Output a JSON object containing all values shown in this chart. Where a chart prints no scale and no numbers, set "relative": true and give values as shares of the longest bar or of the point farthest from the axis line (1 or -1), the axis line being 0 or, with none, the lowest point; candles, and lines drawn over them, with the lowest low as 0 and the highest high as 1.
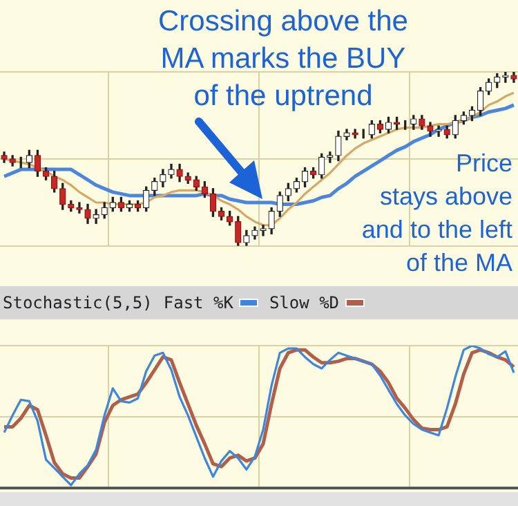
{
  "chart_data": [
    {
      "type": "candlestick",
      "relative": true,
      "grid": true,
      "categories": [
        null,
        null,
        null,
        null,
        null,
        null,
        null,
        null,
        null,
        null,
        null,
        null,
        null,
        null,
        null,
        null,
        null,
        null,
        null,
        null,
        null,
        null,
        null,
        null,
        null,
        null,
        null,
        null,
        null,
        null,
        null,
        null,
        null,
        null,
        null,
        null,
        null,
        null,
        null,
        null,
        null,
        null,
        null,
        null,
        null,
        null,
        null,
        null,
        null,
        null,
        null,
        null,
        null,
        null,
        null,
        null,
        null,
        null,
        null,
        null,
        null,
        null
      ],
      "ohlc": [
        [
          0.52,
          0.54,
          0.48,
          0.5
        ],
        [
          0.5,
          0.52,
          0.46,
          0.48
        ],
        [
          0.48,
          0.51,
          0.45,
          0.48
        ],
        [
          0.48,
          0.55,
          0.45,
          0.52
        ],
        [
          0.52,
          0.55,
          0.4,
          0.43
        ],
        [
          0.43,
          0.45,
          0.38,
          0.4
        ],
        [
          0.4,
          0.43,
          0.31,
          0.33
        ],
        [
          0.33,
          0.36,
          0.21,
          0.24
        ],
        [
          0.24,
          0.26,
          0.2,
          0.22
        ],
        [
          0.22,
          0.25,
          0.19,
          0.21
        ],
        [
          0.21,
          0.24,
          0.13,
          0.16
        ],
        [
          0.16,
          0.21,
          0.13,
          0.18
        ],
        [
          0.18,
          0.25,
          0.16,
          0.22
        ],
        [
          0.22,
          0.28,
          0.2,
          0.25
        ],
        [
          0.25,
          0.28,
          0.2,
          0.22
        ],
        [
          0.22,
          0.26,
          0.2,
          0.24
        ],
        [
          0.24,
          0.26,
          0.2,
          0.22
        ],
        [
          0.22,
          0.34,
          0.2,
          0.32
        ],
        [
          0.32,
          0.39,
          0.29,
          0.37
        ],
        [
          0.37,
          0.44,
          0.34,
          0.41
        ],
        [
          0.41,
          0.47,
          0.39,
          0.44
        ],
        [
          0.44,
          0.47,
          0.37,
          0.4
        ],
        [
          0.4,
          0.42,
          0.36,
          0.38
        ],
        [
          0.38,
          0.4,
          0.32,
          0.34
        ],
        [
          0.34,
          0.37,
          0.28,
          0.3
        ],
        [
          0.3,
          0.33,
          0.17,
          0.2
        ],
        [
          0.2,
          0.22,
          0.15,
          0.17
        ],
        [
          0.17,
          0.2,
          0.12,
          0.14
        ],
        [
          0.14,
          0.17,
          0,
          0.02
        ],
        [
          0.02,
          0.09,
          0,
          0.06
        ],
        [
          0.06,
          0.11,
          0.04,
          0.09
        ],
        [
          0.09,
          0.12,
          0.06,
          0.1
        ],
        [
          0.1,
          0.22,
          0.07,
          0.2
        ],
        [
          0.2,
          0.31,
          0.17,
          0.29
        ],
        [
          0.29,
          0.36,
          0.26,
          0.33
        ],
        [
          0.33,
          0.39,
          0.31,
          0.37
        ],
        [
          0.37,
          0.45,
          0.34,
          0.43
        ],
        [
          0.43,
          0.45,
          0.39,
          0.41
        ],
        [
          0.41,
          0.53,
          0.39,
          0.51
        ],
        [
          0.51,
          0.54,
          0.48,
          0.52
        ],
        [
          0.52,
          0.66,
          0.49,
          0.63
        ],
        [
          0.63,
          0.67,
          0.61,
          0.65
        ],
        [
          0.65,
          0.67,
          0.62,
          0.64
        ],
        [
          0.64,
          0.67,
          0.62,
          0.64
        ],
        [
          0.64,
          0.72,
          0.62,
          0.7
        ],
        [
          0.7,
          0.72,
          0.65,
          0.67
        ],
        [
          0.67,
          0.74,
          0.65,
          0.71
        ],
        [
          0.71,
          0.74,
          0.67,
          0.7
        ],
        [
          0.7,
          0.72,
          0.67,
          0.7
        ],
        [
          0.7,
          0.75,
          0.67,
          0.73
        ],
        [
          0.73,
          0.75,
          0.67,
          0.69
        ],
        [
          0.69,
          0.71,
          0.63,
          0.66
        ],
        [
          0.66,
          0.69,
          0.63,
          0.67
        ],
        [
          0.67,
          0.69,
          0.62,
          0.64
        ],
        [
          0.64,
          0.75,
          0.62,
          0.72
        ],
        [
          0.72,
          0.77,
          0.7,
          0.75
        ],
        [
          0.75,
          0.8,
          0.72,
          0.78
        ],
        [
          0.78,
          0.91,
          0.75,
          0.89
        ],
        [
          0.89,
          0.96,
          0.87,
          0.94
        ],
        [
          0.94,
          0.99,
          0.91,
          0.97
        ],
        [
          0.97,
          1,
          0.94,
          0.98
        ],
        [
          0.98,
          1,
          0.94,
          0.96
        ]
      ],
      "series": [
        {
          "type": "line",
          "color": "#d6a868",
          "values": [
            0.5,
            0.49,
            0.48,
            0.47,
            0.45,
            0.43,
            0.4,
            0.38,
            0.35,
            0.31,
            0.28,
            0.25,
            0.25,
            0.24,
            0.24,
            0.24,
            0.24,
            0.25,
            0.28,
            0.29,
            0.31,
            0.32,
            0.32,
            0.32,
            0.31,
            0.29,
            0.26,
            0.24,
            0.21,
            0.17,
            0.14,
            0.12,
            0.12,
            0.16,
            0.21,
            0.25,
            0.3,
            0.34,
            0.38,
            0.42,
            0.47,
            0.52,
            0.56,
            0.59,
            0.61,
            0.63,
            0.65,
            0.67,
            0.68,
            0.68,
            0.68,
            0.69,
            0.7,
            0.7,
            0.71,
            0.72,
            0.74,
            0.77,
            0.81,
            0.83,
            0.86,
            0.88
          ]
        },
        {
          "type": "line",
          "color": "#4a86e0",
          "values": [
            0.4,
            0.42,
            0.44,
            0.44,
            0.44,
            0.44,
            0.44,
            0.44,
            0.44,
            0.41,
            0.38,
            0.35,
            0.33,
            0.31,
            0.3,
            0.29,
            0.29,
            0.29,
            0.29,
            0.29,
            0.29,
            0.29,
            0.29,
            0.29,
            0.3,
            0.29,
            0.29,
            0.27,
            0.26,
            0.25,
            0.25,
            0.25,
            0.25,
            0.24,
            0.24,
            0.24,
            0.25,
            0.26,
            0.28,
            0.29,
            0.33,
            0.36,
            0.4,
            0.43,
            0.46,
            0.49,
            0.52,
            0.55,
            0.57,
            0.6,
            0.62,
            0.64,
            0.67,
            0.69,
            0.71,
            0.72,
            0.74,
            0.75,
            0.77,
            0.78,
            0.79,
            0.81
          ]
        }
      ],
      "annotations": [
        "Crossing above the\nMA marks the BUY\nof the uptrend",
        "Price\nstays above\nand to the left\nof the MA"
      ]
    },
    {
      "type": "line",
      "title": "Stochastic(5,5)",
      "relative": true,
      "grid": true,
      "legend": "top left",
      "categories": [
        null,
        null,
        null,
        null,
        null,
        null,
        null,
        null,
        null,
        null,
        null,
        null,
        null,
        null,
        null,
        null,
        null,
        null,
        null,
        null,
        null,
        null,
        null,
        null,
        null,
        null,
        null,
        null,
        null,
        null,
        null,
        null,
        null,
        null,
        null,
        null,
        null,
        null,
        null,
        null,
        null,
        null,
        null,
        null,
        null,
        null,
        null,
        null,
        null,
        null,
        null,
        null,
        null,
        null,
        null,
        null,
        null,
        null,
        null,
        null,
        null,
        null
      ],
      "series": [
        {
          "name": "Fast %K",
          "color": "#3d86e0",
          "values": [
            0.39,
            0.51,
            0.62,
            0.61,
            0.47,
            0.2,
            0.14,
            0.08,
            0.02,
            0.1,
            0.16,
            0.27,
            0.51,
            0.7,
            0.61,
            0.6,
            0.63,
            0.82,
            0.93,
            0.95,
            0.83,
            0.64,
            0.51,
            0.36,
            0.21,
            0.08,
            0.19,
            0.26,
            0.21,
            0.13,
            0.22,
            0.41,
            0.72,
            0.95,
            0.98,
            0.98,
            0.92,
            0.87,
            0.84,
            0.9,
            0.95,
            0.93,
            0.91,
            0.89,
            0.87,
            0.79,
            0.69,
            0.59,
            0.51,
            0.45,
            0.41,
            0.39,
            0.37,
            0.56,
            0.78,
            0.97,
            1,
            0.98,
            0.94,
            0.92,
            0.96,
            0.81
          ]
        },
        {
          "name": "Slow %D",
          "color": "#b0604a",
          "values": [
            0.43,
            0.43,
            0.49,
            0.58,
            0.55,
            0.37,
            0.18,
            0.1,
            0.07,
            0.07,
            0.15,
            0.24,
            0.46,
            0.58,
            0.62,
            0.64,
            0.66,
            0.74,
            0.83,
            0.92,
            0.9,
            0.74,
            0.59,
            0.44,
            0.31,
            0.17,
            0.15,
            0.21,
            0.23,
            0.19,
            0.21,
            0.31,
            0.59,
            0.84,
            0.95,
            0.97,
            0.97,
            0.92,
            0.88,
            0.88,
            0.89,
            0.91,
            0.91,
            0.89,
            0.87,
            0.82,
            0.74,
            0.63,
            0.56,
            0.48,
            0.42,
            0.41,
            0.41,
            0.43,
            0.59,
            0.8,
            0.95,
            0.97,
            0.95,
            0.92,
            0.9,
            0.85
          ]
        }
      ]
    }
  ]
}
